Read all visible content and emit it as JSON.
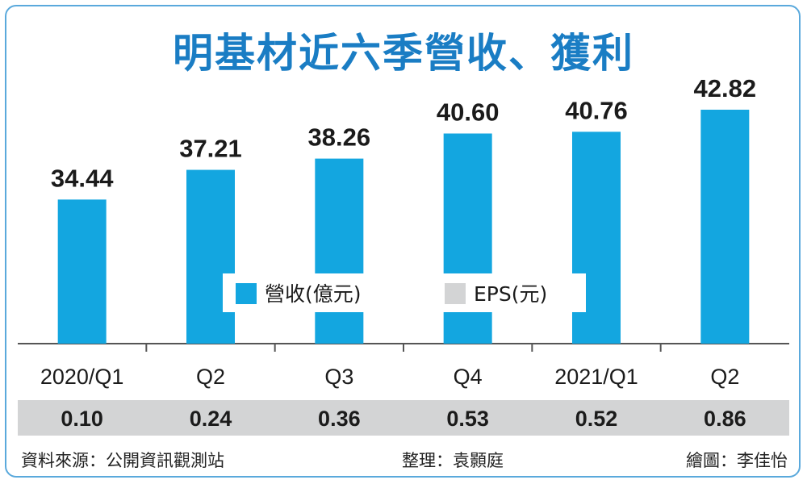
{
  "title": "明基材近六季營收、獲利",
  "colors": {
    "bar": "#13a6e0",
    "eps_band": "#d3d4d5",
    "frame": "#5aa9dc",
    "title": "#1a7dc4",
    "axis": "#555555"
  },
  "chart_data": {
    "type": "bar",
    "categories": [
      "2020/Q1",
      "Q2",
      "Q3",
      "Q4",
      "2021/Q1",
      "Q2"
    ],
    "series": [
      {
        "name": "營收(億元)",
        "values": [
          34.44,
          37.21,
          38.26,
          40.6,
          40.76,
          42.82
        ]
      },
      {
        "name": "EPS(元)",
        "values": [
          0.1,
          0.24,
          0.36,
          0.53,
          0.52,
          0.86
        ]
      }
    ],
    "value_labels": [
      "34.44",
      "37.21",
      "38.26",
      "40.60",
      "40.76",
      "42.82"
    ],
    "eps_labels": [
      "0.10",
      "0.24",
      "0.36",
      "0.53",
      "0.52",
      "0.86"
    ],
    "ylim": [
      21,
      43.5
    ],
    "grid": false,
    "legend_position": "center"
  },
  "legend": {
    "revenue": "營收(億元)",
    "eps": "EPS(元)"
  },
  "footer": {
    "source": "資料來源：公開資訊觀測站",
    "editor": "整理：袁顥庭",
    "illustrator": "繪圖：李佳怡"
  }
}
